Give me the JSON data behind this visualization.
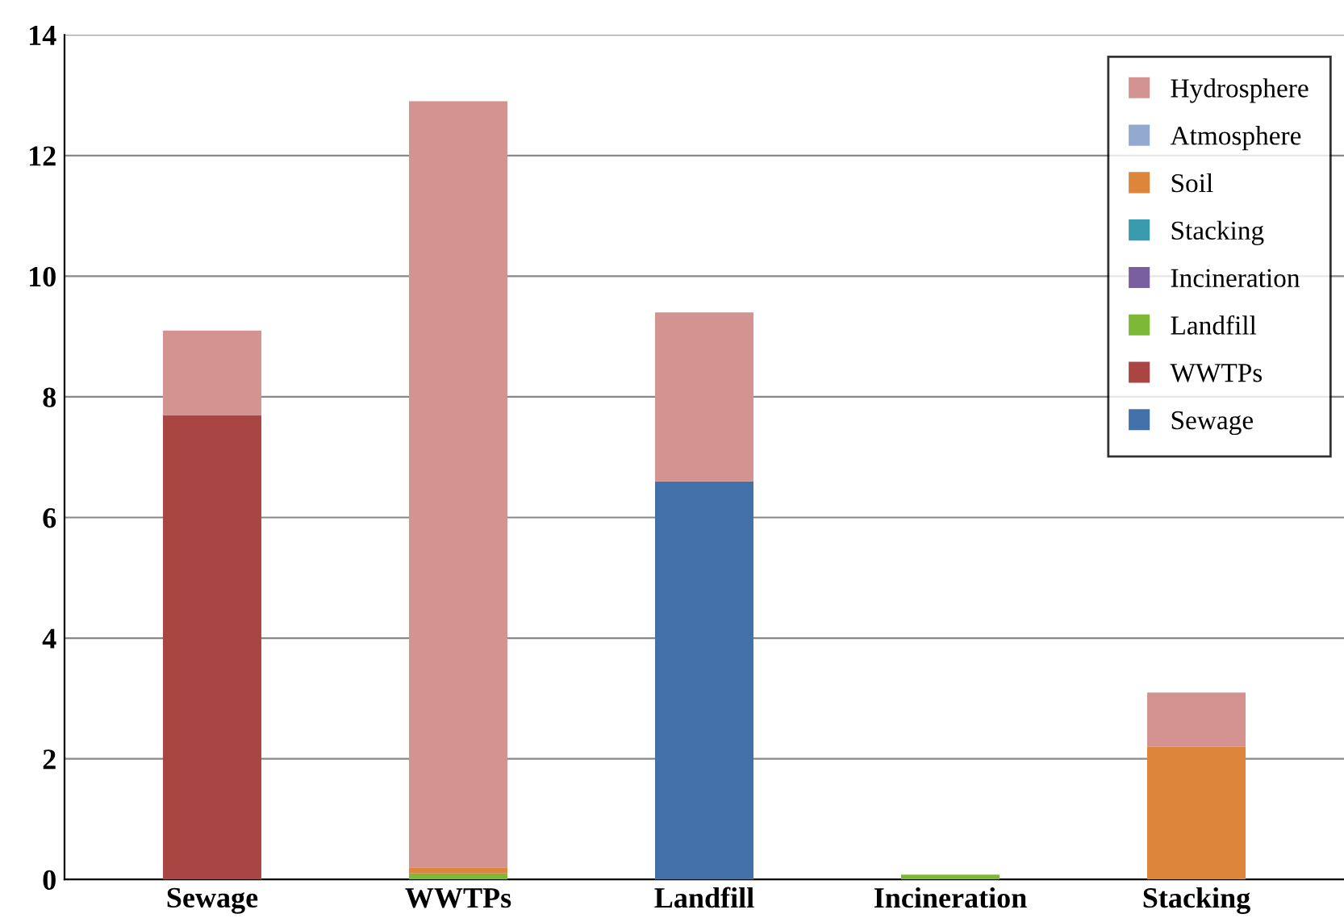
{
  "chart_data": {
    "type": "bar",
    "stacked": true,
    "categories": [
      "Sewage",
      "WWTPs",
      "Landfill",
      "Incineration",
      "Stacking"
    ],
    "series": [
      {
        "name": "Sewage",
        "color": "#4271a9",
        "values": [
          0,
          0,
          6.6,
          0,
          0
        ]
      },
      {
        "name": "WWTPs",
        "color": "#a94542",
        "values": [
          7.7,
          0,
          0,
          0,
          0
        ]
      },
      {
        "name": "Landfill",
        "color": "#7eb837",
        "values": [
          0,
          0.1,
          0,
          0.08,
          0
        ]
      },
      {
        "name": "Incineration",
        "color": "#7a5fa0",
        "values": [
          0,
          0,
          0,
          0,
          0
        ]
      },
      {
        "name": "Stacking",
        "color": "#3b9bae",
        "values": [
          0,
          0,
          0,
          0,
          0
        ]
      },
      {
        "name": "Soil",
        "color": "#dc853b",
        "values": [
          0,
          0.1,
          0,
          0,
          2.2
        ]
      },
      {
        "name": "Atmosphere",
        "color": "#94a9d0",
        "values": [
          0,
          0,
          0,
          0,
          0
        ]
      },
      {
        "name": "Hydrosphere",
        "color": "#d39391",
        "values": [
          1.4,
          12.7,
          2.8,
          0,
          0.9
        ]
      }
    ],
    "ylim": [
      0,
      14
    ],
    "yticks": [
      0,
      2,
      4,
      6,
      8,
      10,
      12,
      14
    ],
    "grid": "y",
    "legend": "top right"
  }
}
